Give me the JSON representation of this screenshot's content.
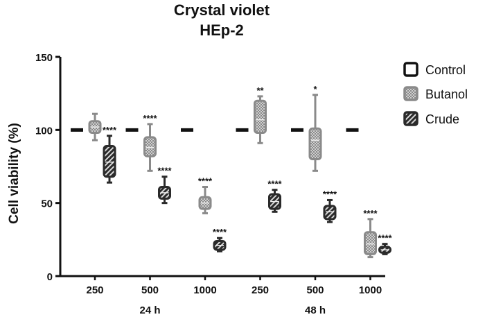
{
  "chart_data": {
    "type": "boxplot",
    "title": "Crystal violet",
    "subtitle": "HEp-2",
    "ylabel": "Cell viability (%)",
    "ylim": [
      0,
      150
    ],
    "yticks": [
      0,
      50,
      100,
      150
    ],
    "categories": [
      "250",
      "500",
      "1000",
      "250",
      "500",
      "1000"
    ],
    "groups": [
      {
        "label": "24 h",
        "categories": [
          0,
          1,
          2
        ]
      },
      {
        "label": "48 h",
        "categories": [
          3,
          4,
          5
        ]
      }
    ],
    "legend": [
      "Control",
      "Butanol",
      "Crude"
    ],
    "legend_position": "top-right",
    "colors": {
      "control": "#111111",
      "butanol": "#8a8a8a",
      "crude": "#2a2a2a"
    },
    "series": [
      {
        "name": "Control",
        "style": "line",
        "values": [
          100,
          100,
          100,
          100,
          100,
          100
        ]
      },
      {
        "name": "Butanol",
        "pattern": "checker",
        "boxes": [
          {
            "min": 93,
            "q1": 98,
            "median": 102,
            "q3": 106,
            "max": 111,
            "sig": ""
          },
          {
            "min": 72,
            "q1": 82,
            "median": 88,
            "q3": 95,
            "max": 104,
            "sig": "****"
          },
          {
            "min": 43,
            "q1": 46,
            "median": 50,
            "q3": 54,
            "max": 61,
            "sig": "****"
          },
          {
            "min": 91,
            "q1": 98,
            "median": 107,
            "q3": 120,
            "max": 123,
            "sig": "**"
          },
          {
            "min": 72,
            "q1": 80,
            "median": 93,
            "q3": 101,
            "max": 124,
            "sig": "*"
          },
          {
            "min": 13,
            "q1": 15,
            "median": 22,
            "q3": 30,
            "max": 39,
            "sig": "****"
          }
        ]
      },
      {
        "name": "Crude",
        "pattern": "diagonal",
        "boxes": [
          {
            "min": 64,
            "q1": 68,
            "median": 78,
            "q3": 89,
            "max": 96,
            "sig": "****"
          },
          {
            "min": 50,
            "q1": 53,
            "median": 57,
            "q3": 61,
            "max": 68,
            "sig": "****"
          },
          {
            "min": 17,
            "q1": 18,
            "median": 21,
            "q3": 24,
            "max": 26,
            "sig": "****"
          },
          {
            "min": 44,
            "q1": 46,
            "median": 51,
            "q3": 56,
            "max": 59,
            "sig": "****"
          },
          {
            "min": 37,
            "q1": 39,
            "median": 44,
            "q3": 48,
            "max": 52,
            "sig": "****"
          },
          {
            "min": 15,
            "q1": 16,
            "median": 18,
            "q3": 20,
            "max": 22,
            "sig": "****"
          }
        ]
      }
    ]
  }
}
